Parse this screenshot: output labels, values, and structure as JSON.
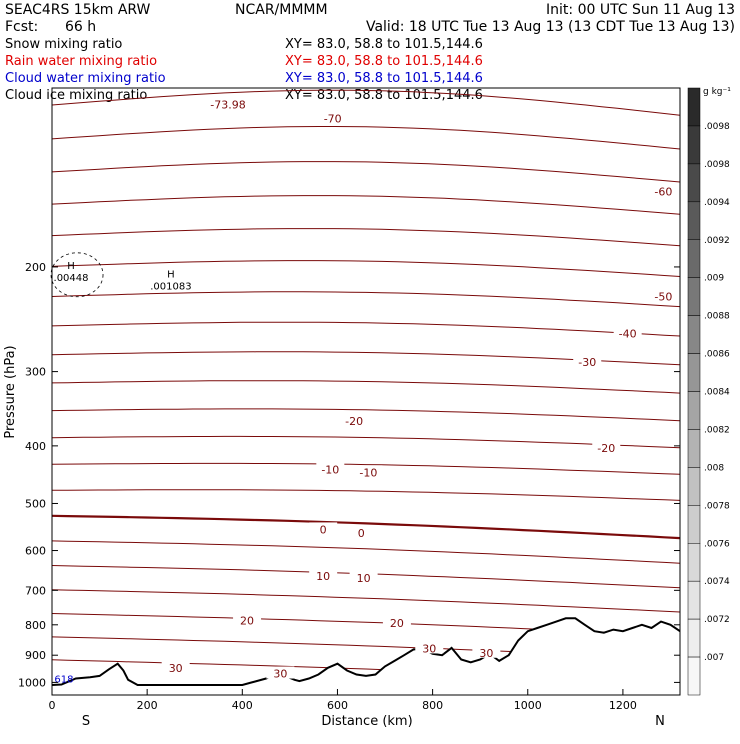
{
  "header": {
    "model": "SEAC4RS 15km ARW",
    "org": "NCAR/MMMM",
    "init": "Init: 00 UTC Sun 11 Aug 13",
    "fcst_label": "Fcst:",
    "fcst_value": "66 h",
    "valid": "Valid: 18 UTC Tue 13 Aug 13 (13 CDT Tue 13 Aug 13)"
  },
  "fields": [
    {
      "name": "Snow mixing ratio",
      "xy": "XY=  83.0, 58.8 to 101.5,144.6",
      "color": "#000000"
    },
    {
      "name": "Rain water mixing ratio",
      "xy": "XY=  83.0, 58.8 to 101.5,144.6",
      "color": "#e00000"
    },
    {
      "name": "Cloud water mixing ratio",
      "xy": "XY=  83.0, 58.8 to 101.5,144.6",
      "color": "#0000cc"
    },
    {
      "name": "Cloud ice mixing ratio",
      "xy": "XY=  83.0, 58.8 to 101.5,144.6",
      "color": "#000000"
    }
  ],
  "chart_data": {
    "type": "cross-section contour",
    "xlabel": "Distance (km)",
    "ylabel": "Pressure (hPa)",
    "x_ticks": [
      0,
      200,
      400,
      600,
      800,
      1000,
      1200
    ],
    "xlim": [
      0,
      1320
    ],
    "y_ticks": [
      200,
      300,
      400,
      500,
      600,
      700,
      800,
      900,
      1000
    ],
    "ylim": [
      1050,
      100
    ],
    "y_scale": "log",
    "end_labels": {
      "left": "S",
      "right": "N"
    },
    "colorbar": {
      "units": "g kg⁻¹",
      "ticks": [
        ".0098",
        ".0098",
        ".0094",
        ".0092",
        ".009",
        ".0088",
        ".0086",
        ".0084",
        ".0082",
        ".008",
        ".0078",
        ".0076",
        ".0074",
        ".0072",
        ".007"
      ],
      "colors": [
        "#2a2a2a",
        "#3a3a3a",
        "#4a4a4a",
        "#5a5a5a",
        "#6a6a6a",
        "#787878",
        "#878787",
        "#969696",
        "#a5a5a5",
        "#b3b3b3",
        "#c1c1c1",
        "#cdcdcd",
        "#d9d9d9",
        "#e4e4e4",
        "#eeeeee",
        "#f7f7f7"
      ]
    },
    "temperature_contours": {
      "color": "#7a0a0a",
      "interval_C": 5,
      "levels_C": [
        -70,
        -65,
        -60,
        -55,
        -50,
        -45,
        -40,
        -35,
        -30,
        -25,
        -20,
        -15,
        -10,
        -5,
        0,
        5,
        10,
        15,
        20,
        25,
        30
      ],
      "labels": [
        {
          "text": "-73.98",
          "x": 370,
          "p": 107
        },
        {
          "text": "-70",
          "x": 590,
          "p": 113
        },
        {
          "text": "-60",
          "x": 1285,
          "p": 150
        },
        {
          "text": "-50",
          "x": 1285,
          "p": 225
        },
        {
          "text": "-40",
          "x": 1210,
          "p": 260
        },
        {
          "text": "-30",
          "x": 1125,
          "p": 290
        },
        {
          "text": "-20",
          "x": 635,
          "p": 365
        },
        {
          "text": "-20",
          "x": 1165,
          "p": 405
        },
        {
          "text": "-10",
          "x": 585,
          "p": 440
        },
        {
          "text": "-10",
          "x": 665,
          "p": 445
        },
        {
          "text": "0",
          "x": 570,
          "p": 555
        },
        {
          "text": "0",
          "x": 650,
          "p": 563
        },
        {
          "text": "10",
          "x": 570,
          "p": 665
        },
        {
          "text": "10",
          "x": 655,
          "p": 670
        },
        {
          "text": "20",
          "x": 410,
          "p": 790
        },
        {
          "text": "20",
          "x": 725,
          "p": 797
        },
        {
          "text": "30",
          "x": 480,
          "p": 970
        },
        {
          "text": "30",
          "x": 260,
          "p": 950
        },
        {
          "text": "30",
          "x": 793,
          "p": 880
        },
        {
          "text": "30",
          "x": 913,
          "p": 895
        }
      ]
    },
    "extrema_labels": [
      {
        "symbol": "H",
        "value": ".00448",
        "x": 40,
        "p": 203,
        "color": "#000000"
      },
      {
        "symbol": "H",
        "value": ".001083",
        "x": 250,
        "p": 210,
        "color": "#000000"
      }
    ],
    "other_labels": [
      {
        "text": "618",
        "x": 25,
        "p": 1000,
        "color": "#0000cc"
      }
    ],
    "terrain_surface": {
      "x_km": [
        0,
        20,
        50,
        80,
        100,
        120,
        138,
        150,
        160,
        180,
        200,
        250,
        300,
        350,
        400,
        420,
        450,
        470,
        490,
        510,
        520,
        540,
        560,
        580,
        600,
        620,
        640,
        660,
        680,
        700,
        720,
        740,
        760,
        780,
        800,
        820,
        840,
        860,
        880,
        900,
        920,
        940,
        960,
        980,
        1000,
        1020,
        1040,
        1060,
        1080,
        1100,
        1120,
        1140,
        1160,
        1180,
        1200,
        1220,
        1240,
        1260,
        1280,
        1300,
        1320
      ],
      "p_hPa": [
        1010,
        1008,
        985,
        980,
        975,
        950,
        930,
        955,
        990,
        1010,
        1010,
        1010,
        1010,
        1010,
        1010,
        1000,
        985,
        970,
        975,
        990,
        995,
        985,
        970,
        945,
        930,
        955,
        970,
        975,
        970,
        940,
        920,
        900,
        880,
        880,
        895,
        900,
        875,
        915,
        925,
        915,
        895,
        920,
        900,
        850,
        820,
        810,
        800,
        790,
        780,
        780,
        800,
        820,
        825,
        815,
        820,
        810,
        800,
        810,
        790,
        800,
        820
      ]
    }
  }
}
